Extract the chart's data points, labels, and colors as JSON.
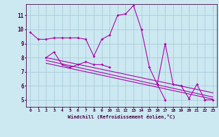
{
  "xlabel": "Windchill (Refroidissement éolien,°C)",
  "background_color": "#cce8f0",
  "line_color": "#aa00aa",
  "grid_color": "#aaccdd",
  "xlim": [
    -0.5,
    23.5
  ],
  "ylim": [
    4.5,
    11.8
  ],
  "yticks": [
    5,
    6,
    7,
    8,
    9,
    10,
    11
  ],
  "xticks": [
    0,
    1,
    2,
    3,
    4,
    5,
    6,
    7,
    8,
    9,
    10,
    11,
    12,
    13,
    14,
    15,
    16,
    17,
    18,
    19,
    20,
    21,
    22,
    23
  ],
  "series_main": [
    9.8,
    9.3,
    9.3,
    9.4,
    9.4,
    9.4,
    9.4,
    9.3,
    8.1,
    9.3,
    9.6,
    11.0,
    11.1,
    11.7,
    10.0,
    7.3,
    6.1,
    9.0,
    6.1,
    6.0,
    5.1,
    6.1,
    5.0,
    5.0
  ],
  "series_mid": [
    null,
    null,
    8.0,
    8.4,
    7.5,
    7.3,
    7.5,
    7.7,
    7.5,
    7.5,
    7.3,
    null,
    null,
    null,
    null,
    null,
    6.1,
    5.0,
    null,
    null,
    null,
    null,
    null,
    null
  ],
  "linear_lines": [
    {
      "x": [
        2,
        23
      ],
      "y": [
        8.0,
        5.5
      ]
    },
    {
      "x": [
        2,
        23
      ],
      "y": [
        7.8,
        5.2
      ]
    },
    {
      "x": [
        2,
        23
      ],
      "y": [
        7.6,
        5.05
      ]
    }
  ]
}
